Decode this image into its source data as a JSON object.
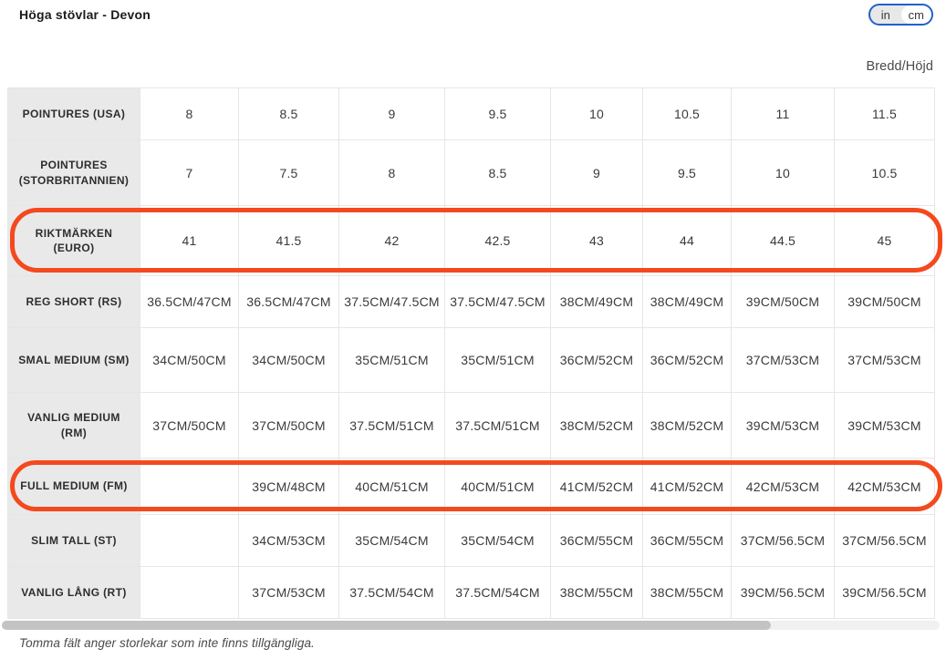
{
  "header": {
    "title": "Höga stövlar - Devon",
    "unit_toggle": {
      "options": [
        "in",
        "cm"
      ],
      "selected": "cm"
    }
  },
  "table": {
    "corner_label": "Bredd/Höjd",
    "rows": [
      {
        "label": "POINTURES (USA)",
        "highlighted": false,
        "values": [
          "8",
          "8.5",
          "9",
          "9.5",
          "10",
          "10.5",
          "11",
          "11.5"
        ]
      },
      {
        "label": "POINTURES (STORBRITANNIEN)",
        "highlighted": false,
        "values": [
          "7",
          "7.5",
          "8",
          "8.5",
          "9",
          "9.5",
          "10",
          "10.5"
        ]
      },
      {
        "label": "RIKTMÄRKEN (EURO)",
        "highlighted": true,
        "values": [
          "41",
          "41.5",
          "42",
          "42.5",
          "43",
          "44",
          "44.5",
          "45"
        ]
      },
      {
        "label": "REG SHORT (RS)",
        "highlighted": false,
        "values": [
          "36.5CM/47CM",
          "36.5CM/47CM",
          "37.5CM/47.5CM",
          "37.5CM/47.5CM",
          "38CM/49CM",
          "38CM/49CM",
          "39CM/50CM",
          "39CM/50CM"
        ]
      },
      {
        "label": "SMAL MEDIUM (SM)",
        "highlighted": false,
        "values": [
          "34CM/50CM",
          "34CM/50CM",
          "35CM/51CM",
          "35CM/51CM",
          "36CM/52CM",
          "36CM/52CM",
          "37CM/53CM",
          "37CM/53CM"
        ]
      },
      {
        "label": "VANLIG MEDIUM (RM)",
        "highlighted": false,
        "values": [
          "37CM/50CM",
          "37CM/50CM",
          "37.5CM/51CM",
          "37.5CM/51CM",
          "38CM/52CM",
          "38CM/52CM",
          "39CM/53CM",
          "39CM/53CM"
        ]
      },
      {
        "label": "FULL MEDIUM (FM)",
        "highlighted": true,
        "values": [
          "",
          "39CM/48CM",
          "40CM/51CM",
          "40CM/51CM",
          "41CM/52CM",
          "41CM/52CM",
          "42CM/53CM",
          "42CM/53CM"
        ]
      },
      {
        "label": "SLIM TALL (ST)",
        "highlighted": false,
        "values": [
          "",
          "34CM/53CM",
          "35CM/54CM",
          "35CM/54CM",
          "36CM/55CM",
          "36CM/55CM",
          "37CM/56.5CM",
          "37CM/56.5CM"
        ]
      },
      {
        "label": "VANLIG LÅNG (RT)",
        "highlighted": false,
        "values": [
          "",
          "37CM/53CM",
          "37.5CM/54CM",
          "37.5CM/54CM",
          "38CM/55CM",
          "38CM/55CM",
          "39CM/56.5CM",
          "39CM/56.5CM"
        ]
      }
    ]
  },
  "footnote": "Tomma fält anger storlekar som inte finns tillgängliga.",
  "colors": {
    "highlight": "#f4491e",
    "toggle_border": "#2061cc",
    "label_column_bg": "#e9e9e9"
  }
}
